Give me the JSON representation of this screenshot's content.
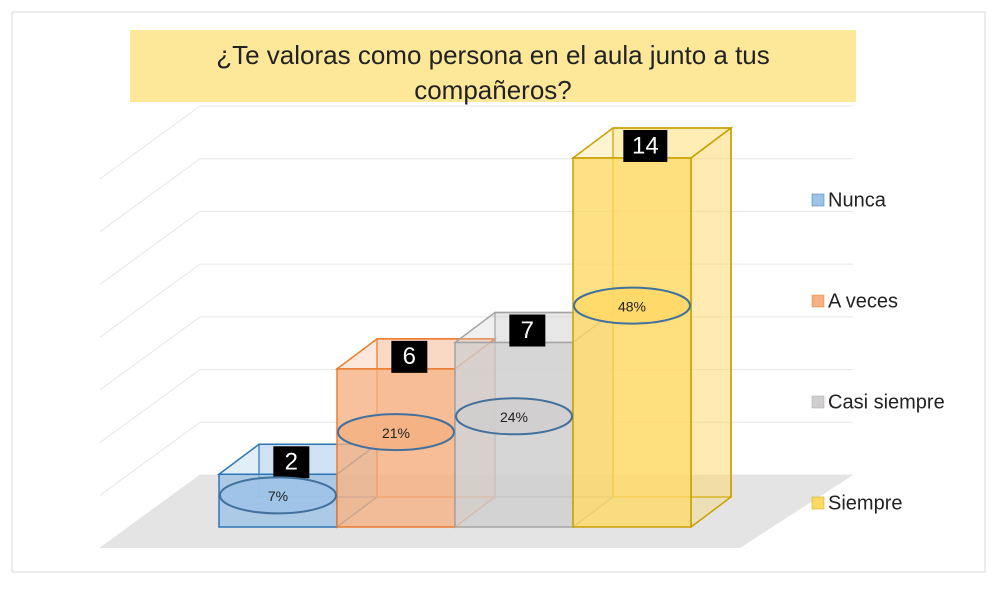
{
  "chart_data": {
    "type": "bar3d",
    "title": "¿Te valoras como persona en el aula junto a tus compañeros?",
    "categories": [
      "Nunca",
      "A veces",
      "Casi siempre",
      "Siempre"
    ],
    "values": [
      2,
      6,
      7,
      14
    ],
    "percentages": [
      7,
      21,
      24,
      48
    ],
    "percentage_labels": [
      "7%",
      "21%",
      "24%",
      "48%"
    ],
    "colors": [
      "#9dc3e6",
      "#f4b183",
      "#d0cece",
      "#ffd966"
    ],
    "edge_colors": [
      "#2e75b6",
      "#ed7d31",
      "#a5a5a5",
      "#c9a000"
    ],
    "ylim": [
      0,
      14
    ],
    "yticks": [
      0,
      2,
      4,
      6,
      8,
      10,
      12,
      14
    ],
    "grid": true,
    "legend": "right"
  }
}
